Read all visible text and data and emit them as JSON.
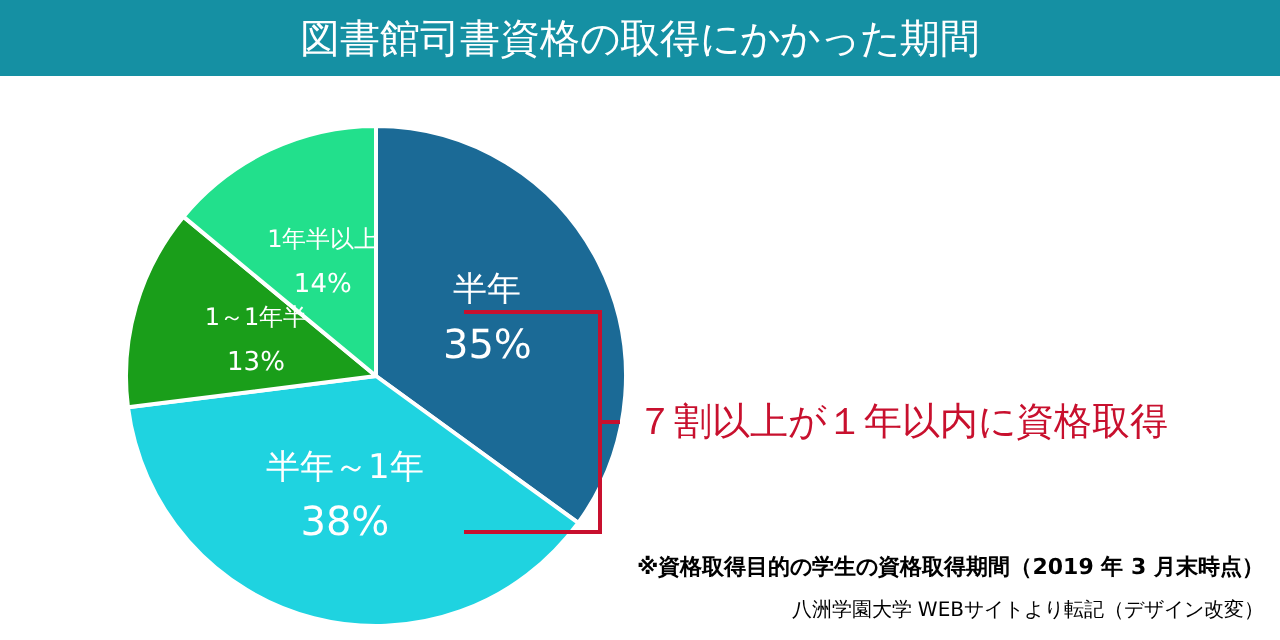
{
  "chart_data": {
    "type": "pie",
    "title": "図書館司書資格の取得にかかった期間",
    "categories": [
      "半年",
      "半年～1年",
      "1～1年半",
      "1年半以上"
    ],
    "values": [
      35,
      38,
      13,
      14
    ],
    "value_labels": [
      "35%",
      "38%",
      "13%",
      "14%"
    ],
    "colors": [
      "#1b6a96",
      "#1fd3e0",
      "#1a9e1a",
      "#22e08c"
    ],
    "annotations": [
      "７割以上が１年以内に資格取得",
      "※資格取得目的の学生の資格取得期間（2019 年 3 月末時点）",
      "八洲学園大学 WEBサイトより転記（デザイン改変）"
    ],
    "legend": false
  }
}
